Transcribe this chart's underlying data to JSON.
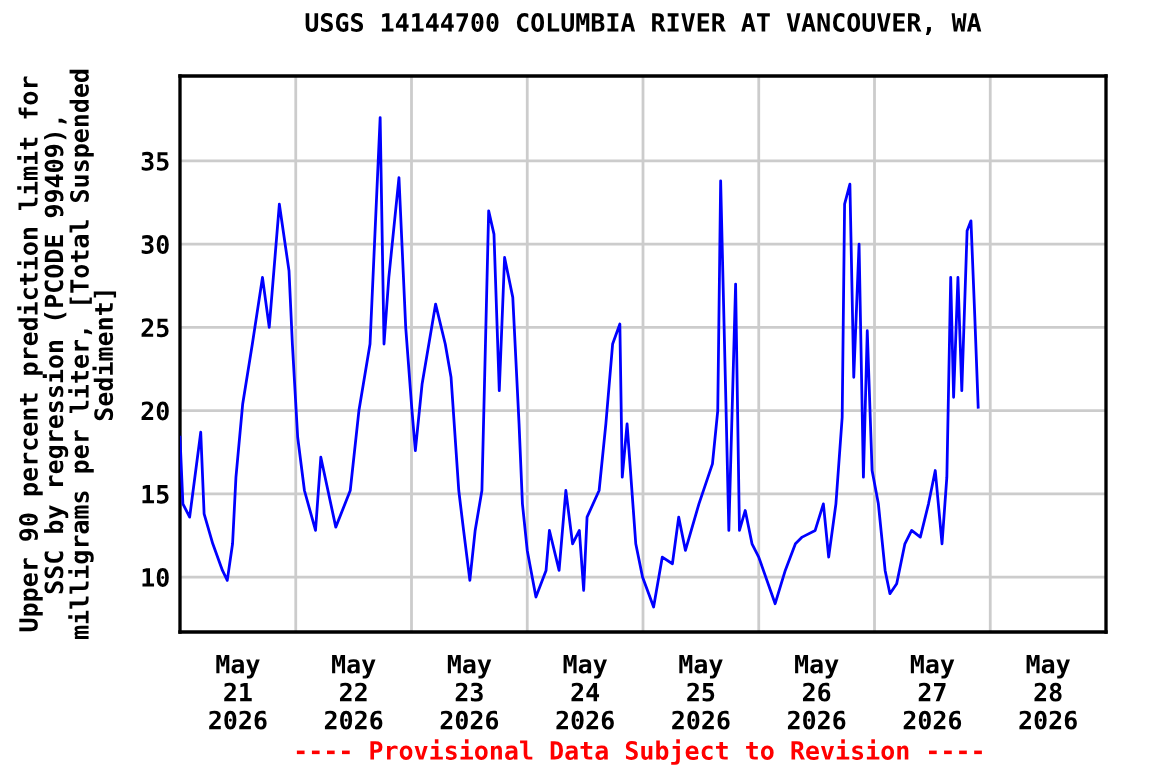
{
  "chart_data": {
    "type": "line",
    "title": "USGS 14144700 COLUMBIA RIVER AT VANCOUVER, WA",
    "ylabel": "Upper 90 percent prediction limit for\nSSC by regression (PCODE 99409),\nmilligrams per liter, [Total Suspended\nSediment]",
    "annotations": [
      "---- Provisional Data Subject to Revision ----"
    ],
    "x": [
      "2026-05-21T00:00",
      "2026-05-21T00:36",
      "2026-05-21T02:00",
      "2026-05-21T04:18",
      "2026-05-21T05:00",
      "2026-05-21T06:48",
      "2026-05-21T08:48",
      "2026-05-21T09:48",
      "2026-05-21T10:54",
      "2026-05-21T11:36",
      "2026-05-21T13:00",
      "2026-05-21T15:00",
      "2026-05-21T17:06",
      "2026-05-21T18:30",
      "2026-05-21T20:36",
      "2026-05-21T22:36",
      "2026-05-21T23:18",
      "2026-05-22T00:24",
      "2026-05-22T01:48",
      "2026-05-22T04:06",
      "2026-05-22T05:12",
      "2026-05-22T08:18",
      "2026-05-22T11:18",
      "2026-05-22T13:06",
      "2026-05-22T15:24",
      "2026-05-22T17:30",
      "2026-05-22T18:18",
      "2026-05-22T19:18",
      "2026-05-22T21:24",
      "2026-05-22T22:48",
      "2026-05-23T00:06",
      "2026-05-23T00:48",
      "2026-05-23T02:12",
      "2026-05-23T05:00",
      "2026-05-23T07:00",
      "2026-05-23T08:12",
      "2026-05-23T09:48",
      "2026-05-23T10:48",
      "2026-05-23T12:06",
      "2026-05-23T13:12",
      "2026-05-23T14:36",
      "2026-05-23T16:00",
      "2026-05-23T17:06",
      "2026-05-23T18:12",
      "2026-05-23T19:18",
      "2026-05-23T21:00",
      "2026-05-23T22:18",
      "2026-05-23T23:00",
      "2026-05-24T00:00",
      "2026-05-24T01:48",
      "2026-05-24T03:54",
      "2026-05-24T04:36",
      "2026-05-24T06:36",
      "2026-05-24T08:00",
      "2026-05-24T09:24",
      "2026-05-24T10:48",
      "2026-05-24T11:42",
      "2026-05-24T12:24",
      "2026-05-24T14:54",
      "2026-05-24T16:18",
      "2026-05-24T17:42",
      "2026-05-24T19:12",
      "2026-05-24T19:42",
      "2026-05-24T20:42",
      "2026-05-24T22:30",
      "2026-05-24T23:54",
      "2026-05-25T02:12",
      "2026-05-25T04:00",
      "2026-05-25T06:06",
      "2026-05-25T07:24",
      "2026-05-25T08:48",
      "2026-05-25T11:36",
      "2026-05-25T14:24",
      "2026-05-25T15:30",
      "2026-05-25T16:06",
      "2026-05-25T17:06",
      "2026-05-25T17:48",
      "2026-05-25T19:12",
      "2026-05-25T20:00",
      "2026-05-25T21:12",
      "2026-05-25T22:36",
      "2026-05-26T00:00",
      "2026-05-26T03:24",
      "2026-05-26T05:30",
      "2026-05-26T07:36",
      "2026-05-26T09:00",
      "2026-05-26T11:42",
      "2026-05-26T13:24",
      "2026-05-26T14:30",
      "2026-05-26T16:00",
      "2026-05-26T17:18",
      "2026-05-26T17:48",
      "2026-05-26T18:54",
      "2026-05-26T19:42",
      "2026-05-26T20:48",
      "2026-05-26T21:42",
      "2026-05-26T22:30",
      "2026-05-26T23:30",
      "2026-05-27T00:48",
      "2026-05-27T02:12",
      "2026-05-27T03:12",
      "2026-05-27T04:36",
      "2026-05-27T06:18",
      "2026-05-27T07:42",
      "2026-05-27T09:30",
      "2026-05-27T11:12",
      "2026-05-27T12:36",
      "2026-05-27T14:00",
      "2026-05-27T15:00",
      "2026-05-27T15:48",
      "2026-05-27T16:24",
      "2026-05-27T17:18",
      "2026-05-27T18:06",
      "2026-05-27T19:12",
      "2026-05-27T20:00",
      "2026-05-27T20:48",
      "2026-05-27T21:30"
    ],
    "series": [
      {
        "color": "#0000ff",
        "values": [
          18.4,
          14.4,
          13.6,
          18.7,
          13.8,
          12.0,
          10.4,
          9.8,
          12.0,
          16.0,
          20.4,
          24.0,
          28.0,
          25.0,
          32.4,
          28.4,
          24.0,
          18.4,
          15.2,
          12.8,
          17.2,
          13.0,
          15.2,
          20.0,
          24.0,
          37.6,
          24.0,
          28.0,
          34.0,
          25.0,
          20.0,
          17.6,
          21.6,
          26.4,
          24.0,
          22.0,
          15.2,
          12.8,
          9.8,
          12.8,
          15.2,
          32.0,
          30.6,
          21.2,
          29.2,
          26.8,
          19.2,
          14.4,
          11.6,
          8.8,
          10.4,
          12.8,
          10.4,
          15.2,
          12.0,
          12.8,
          9.2,
          13.6,
          15.2,
          19.2,
          24.0,
          25.2,
          16.0,
          19.2,
          12.0,
          10.0,
          8.2,
          11.2,
          10.8,
          13.6,
          11.6,
          14.4,
          16.8,
          20.0,
          33.8,
          21.6,
          12.8,
          27.6,
          12.8,
          14.0,
          12.0,
          11.2,
          8.4,
          10.4,
          12.0,
          12.4,
          12.8,
          14.4,
          11.2,
          14.4,
          19.6,
          32.4,
          33.6,
          22.0,
          30.0,
          16.0,
          24.8,
          16.4,
          14.4,
          10.4,
          9.0,
          9.6,
          12.0,
          12.8,
          12.4,
          14.4,
          16.4,
          12.0,
          16.0,
          28.0,
          20.8,
          28.0,
          21.2,
          30.8,
          31.4,
          25.6,
          20.2
        ]
      }
    ],
    "xlim": [
      "2026-05-21T00:00",
      "2026-05-29T00:00"
    ],
    "xticks": [
      {
        "value": "2026-05-22T00:00",
        "label": null
      },
      {
        "value": "2026-05-23T00:00",
        "label": null
      },
      {
        "value": "2026-05-24T00:00",
        "label": null
      },
      {
        "value": "2026-05-25T00:00",
        "label": null
      },
      {
        "value": "2026-05-26T00:00",
        "label": null
      },
      {
        "value": "2026-05-27T00:00",
        "label": null
      },
      {
        "value": "2026-05-28T00:00",
        "label": null
      },
      {
        "value": "2026-05-21T12:00",
        "label": "May\n21\n2026"
      },
      {
        "value": "2026-05-22T12:00",
        "label": "May\n22\n2026"
      },
      {
        "value": "2026-05-23T12:00",
        "label": "May\n23\n2026"
      },
      {
        "value": "2026-05-24T12:00",
        "label": "May\n24\n2026"
      },
      {
        "value": "2026-05-25T12:00",
        "label": "May\n25\n2026"
      },
      {
        "value": "2026-05-26T12:00",
        "label": "May\n26\n2026"
      },
      {
        "value": "2026-05-27T12:00",
        "label": "May\n27\n2026"
      },
      {
        "value": "2026-05-28T12:00",
        "label": "May\n28\n2026"
      }
    ],
    "ylim": [
      6.7,
      40.1
    ],
    "yticks": [
      10,
      15,
      20,
      25,
      30,
      35
    ],
    "grid": true,
    "legend": false,
    "marker": "none",
    "line_style": "solid"
  }
}
